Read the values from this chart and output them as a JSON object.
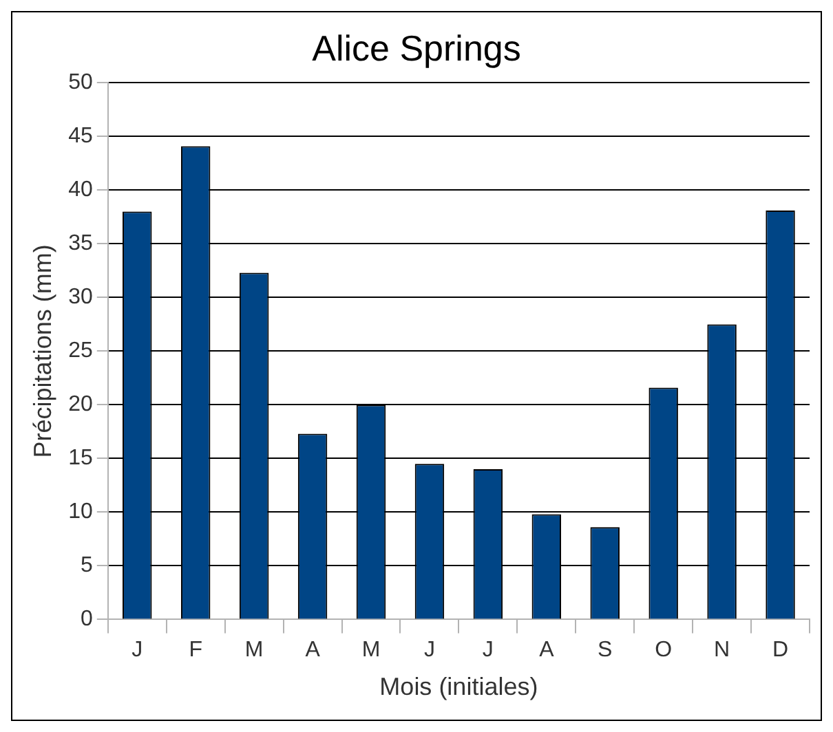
{
  "chart_data": {
    "type": "bar",
    "title": "Alice Springs",
    "xlabel": "Mois (initiales)",
    "ylabel": "Précipitations (mm)",
    "categories": [
      "J",
      "F",
      "M",
      "A",
      "M",
      "J",
      "J",
      "A",
      "S",
      "O",
      "N",
      "D"
    ],
    "values": [
      38.0,
      44.1,
      32.3,
      17.3,
      20.0,
      14.5,
      14.0,
      9.8,
      8.6,
      21.6,
      27.5,
      38.1
    ],
    "color": "#004586",
    "ylim": [
      0,
      50
    ],
    "yticks": [
      0,
      5,
      10,
      15,
      20,
      25,
      30,
      35,
      40,
      45,
      50
    ],
    "grid": "y",
    "legend": false
  }
}
